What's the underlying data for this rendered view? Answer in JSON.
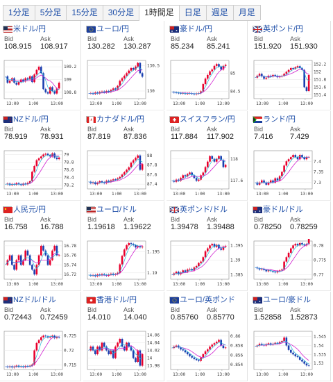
{
  "tabs": [
    {
      "label": "1分足",
      "active": false
    },
    {
      "label": "5分足",
      "active": false
    },
    {
      "label": "15分足",
      "active": false
    },
    {
      "label": "30分足",
      "active": false
    },
    {
      "label": "1時間足",
      "active": true
    },
    {
      "label": "日足",
      "active": false
    },
    {
      "label": "週足",
      "active": false
    },
    {
      "label": "月足",
      "active": false
    }
  ],
  "labels": {
    "bid": "Bid",
    "ask": "Ask"
  },
  "colors": {
    "up": "#e8002d",
    "down": "#1a3fb0",
    "ma_pink": "#d020d0",
    "ma_cyan": "#1fb5d8",
    "link": "#1f4fa8"
  },
  "panels": [
    {
      "pair": "米ドル/円",
      "flag": "us",
      "bid": "108.915",
      "ask": "108.917",
      "chart_data": {
        "type": "candlestick",
        "x_ticks": [
          "13:00",
          "1:00",
          "13:00"
        ],
        "y_ticks": [
          "109.2",
          "109",
          "108.8"
        ],
        "ylim": [
          108.7,
          109.3
        ],
        "path": [
          109.05,
          108.95,
          108.98,
          109.02,
          108.95,
          108.92,
          108.96,
          109.0,
          108.97,
          109.02,
          109.0,
          109.05,
          108.96,
          109.08,
          109.15,
          109.2,
          109.1,
          108.85,
          108.8,
          108.78,
          108.88,
          108.82,
          108.78,
          108.86,
          108.95
        ]
      }
    },
    {
      "pair": "ユーロ/円",
      "flag": "eu",
      "bid": "130.282",
      "ask": "130.287",
      "chart_data": {
        "type": "candlestick",
        "x_ticks": [
          "13:00",
          "1:00",
          "13:00"
        ],
        "y_ticks": [
          "130.5",
          "130"
        ],
        "ylim": [
          129.85,
          130.6
        ],
        "path": [
          129.95,
          129.96,
          129.94,
          129.97,
          129.95,
          129.98,
          129.99,
          129.97,
          130.0,
          129.98,
          130.02,
          130.05,
          130.03,
          130.1,
          130.2,
          130.25,
          130.3,
          130.35,
          130.4,
          130.45,
          130.42,
          130.48,
          130.55,
          130.35,
          130.28
        ]
      }
    },
    {
      "pair": "豪ドル/円",
      "flag": "au",
      "bid": "85.234",
      "ask": "85.241",
      "chart_data": {
        "type": "candlestick",
        "x_ticks": [
          "13:00",
          "1:00",
          "13:00"
        ],
        "y_ticks": [
          "85",
          "84.5"
        ],
        "ylim": [
          84.3,
          85.35
        ],
        "path": [
          84.48,
          84.47,
          84.46,
          84.45,
          84.44,
          84.45,
          84.43,
          84.44,
          84.45,
          84.43,
          84.42,
          84.44,
          84.45,
          84.5,
          84.7,
          84.85,
          84.95,
          85.05,
          85.1,
          85.2,
          85.25,
          85.18,
          85.1,
          85.2,
          85.23
        ]
      }
    },
    {
      "pair": "英ポンド/円",
      "flag": "gb",
      "bid": "151.920",
      "ask": "151.930",
      "chart_data": {
        "type": "candlestick",
        "x_ticks": [
          "13:00",
          "1:00",
          "13:00"
        ],
        "y_ticks": [
          "152.2",
          "152",
          "151.8",
          "151.6",
          "151.4"
        ],
        "ylim": [
          151.3,
          152.3
        ],
        "path": [
          151.85,
          151.9,
          151.95,
          151.88,
          151.82,
          151.85,
          151.9,
          151.88,
          151.92,
          151.9,
          151.86,
          151.88,
          151.9,
          151.95,
          152.0,
          152.05,
          152.1,
          152.08,
          152.12,
          152.15,
          152.1,
          152.05,
          151.6,
          151.5,
          151.92
        ]
      }
    },
    {
      "pair": "NZドル/円",
      "flag": "nz",
      "bid": "78.919",
      "ask": "78.931",
      "chart_data": {
        "type": "candlestick",
        "x_ticks": [
          "13:00",
          "1:00",
          "13:00"
        ],
        "y_ticks": [
          "79",
          "78.8",
          "78.6",
          "78.4",
          "78.2"
        ],
        "ylim": [
          78.1,
          79.1
        ],
        "path": [
          78.22,
          78.24,
          78.2,
          78.23,
          78.21,
          78.25,
          78.22,
          78.2,
          78.24,
          78.22,
          78.26,
          78.3,
          78.55,
          78.7,
          78.85,
          78.9,
          78.95,
          79.0,
          79.02,
          78.98,
          78.95,
          79.03,
          78.92,
          78.88,
          78.92
        ]
      }
    },
    {
      "pair": "カナダドル/円",
      "flag": "ca",
      "bid": "87.819",
      "ask": "87.836",
      "chart_data": {
        "type": "candlestick",
        "x_ticks": [
          "13:00",
          "1:00",
          "13:00"
        ],
        "y_ticks": [
          "88",
          "87.8",
          "87.6",
          "87.4"
        ],
        "ylim": [
          87.3,
          88.1
        ],
        "path": [
          87.45,
          87.42,
          87.44,
          87.4,
          87.43,
          87.46,
          87.44,
          87.42,
          87.47,
          87.45,
          87.48,
          87.5,
          87.49,
          87.52,
          87.55,
          87.6,
          87.65,
          87.7,
          87.75,
          87.85,
          87.9,
          87.95,
          88.0,
          87.7,
          87.82
        ]
      }
    },
    {
      "pair": "スイスフラン/円",
      "flag": "ch",
      "bid": "117.884",
      "ask": "117.902",
      "chart_data": {
        "type": "candlestick",
        "x_ticks": [
          "13:00",
          "1:00",
          "13:00"
        ],
        "y_ticks": [
          "118",
          "117.6"
        ],
        "ylim": [
          117.45,
          118.15
        ],
        "path": [
          117.6,
          117.58,
          117.62,
          117.6,
          117.65,
          117.7,
          117.68,
          117.72,
          117.75,
          117.7,
          117.65,
          117.6,
          117.62,
          117.7,
          117.75,
          117.85,
          117.95,
          118.05,
          118.0,
          117.95,
          118.0,
          118.05,
          117.98,
          117.85,
          117.89
        ]
      }
    },
    {
      "pair": "ランド/円",
      "flag": "za",
      "bid": "7.416",
      "ask": "7.429",
      "chart_data": {
        "type": "candlestick",
        "x_ticks": [
          "13:00",
          "1:00",
          "13:00"
        ],
        "y_ticks": [
          "7.4",
          "7.35",
          "7.3"
        ],
        "ylim": [
          7.27,
          7.45
        ],
        "path": [
          7.3,
          7.29,
          7.3,
          7.31,
          7.3,
          7.29,
          7.3,
          7.31,
          7.3,
          7.32,
          7.31,
          7.33,
          7.35,
          7.38,
          7.4,
          7.41,
          7.42,
          7.43,
          7.42,
          7.41,
          7.43,
          7.42,
          7.41,
          7.42,
          7.42
        ]
      }
    },
    {
      "pair": "人民元/円",
      "flag": "cn",
      "bid": "16.758",
      "ask": "16.788",
      "chart_data": {
        "type": "candlestick",
        "x_ticks": [
          "13:00",
          "1:00",
          "13:00"
        ],
        "y_ticks": [
          "16.78",
          "16.76",
          "16.74",
          "16.72"
        ],
        "ylim": [
          16.71,
          16.79
        ],
        "path": [
          16.74,
          16.75,
          16.76,
          16.74,
          16.73,
          16.75,
          16.76,
          16.74,
          16.75,
          16.77,
          16.76,
          16.74,
          16.73,
          16.72,
          16.74,
          16.76,
          16.78,
          16.77,
          16.76,
          16.74,
          16.75,
          16.77,
          16.78,
          16.76,
          16.76
        ]
      }
    },
    {
      "pair": "ユーロ/ドル",
      "flag": "us",
      "bid": "1.19618",
      "ask": "1.19622",
      "chart_data": {
        "type": "candlestick",
        "x_ticks": [
          "13:00",
          "1:00",
          "13:00"
        ],
        "y_ticks": [
          "1.195",
          "1.19"
        ],
        "ylim": [
          1.1885,
          1.1975
        ],
        "path": [
          1.1895,
          1.1893,
          1.1895,
          1.1892,
          1.1896,
          1.1894,
          1.1897,
          1.1895,
          1.1893,
          1.1896,
          1.1898,
          1.1895,
          1.1897,
          1.19,
          1.192,
          1.194,
          1.1955,
          1.1965,
          1.197,
          1.1968,
          1.1965,
          1.196,
          1.1963,
          1.196,
          1.1962
        ]
      }
    },
    {
      "pair": "英ポンド/ドル",
      "flag": "gb",
      "bid": "1.39478",
      "ask": "1.39488",
      "chart_data": {
        "type": "candlestick",
        "x_ticks": [
          "13:00",
          "1:00",
          "13:00"
        ],
        "y_ticks": [
          "1.395",
          "1.39",
          "1.385"
        ],
        "ylim": [
          1.3835,
          1.3965
        ],
        "path": [
          1.385,
          1.3855,
          1.386,
          1.3852,
          1.3858,
          1.3865,
          1.386,
          1.3868,
          1.387,
          1.3865,
          1.3875,
          1.388,
          1.389,
          1.3895,
          1.391,
          1.393,
          1.394,
          1.395,
          1.3955,
          1.3945,
          1.3952,
          1.394,
          1.3935,
          1.3945,
          1.3948
        ]
      }
    },
    {
      "pair": "豪ドル/ドル",
      "flag": "au",
      "bid": "0.78250",
      "ask": "0.78259",
      "chart_data": {
        "type": "candlestick",
        "x_ticks": [
          "13:00",
          "1:00",
          "13:00"
        ],
        "y_ticks": [
          "0.78",
          "0.775",
          "0.77"
        ],
        "ylim": [
          0.7685,
          0.7815
        ],
        "path": [
          0.7725,
          0.7722,
          0.7718,
          0.772,
          0.7716,
          0.7712,
          0.7715,
          0.7713,
          0.771,
          0.7708,
          0.7712,
          0.7715,
          0.7718,
          0.7745,
          0.776,
          0.7775,
          0.779,
          0.78,
          0.7805,
          0.78,
          0.7808,
          0.7803,
          0.78,
          0.7805,
          0.7825
        ]
      }
    },
    {
      "pair": "NZドル/ドル",
      "flag": "nz",
      "bid": "0.72443",
      "ask": "0.72459",
      "chart_data": {
        "type": "candlestick",
        "x_ticks": [
          "13:00",
          "1:00",
          "13:00"
        ],
        "y_ticks": [
          "0.725",
          "0.72",
          "0.715"
        ],
        "ylim": [
          0.7135,
          0.7265
        ],
        "path": [
          0.7145,
          0.7143,
          0.7146,
          0.7142,
          0.7145,
          0.7148,
          0.7144,
          0.7146,
          0.7143,
          0.7147,
          0.7145,
          0.7148,
          0.7152,
          0.72,
          0.7225,
          0.7235,
          0.7245,
          0.725,
          0.7248,
          0.7244,
          0.7246,
          0.725,
          0.7242,
          0.7246,
          0.7244
        ]
      }
    },
    {
      "pair": "香港ドル/円",
      "flag": "hk",
      "bid": "14.010",
      "ask": "14.040",
      "chart_data": {
        "type": "candlestick",
        "x_ticks": [
          "13:00",
          "1:00",
          "13:00"
        ],
        "y_ticks": [
          "14.06",
          "14.04",
          "14.02",
          "14",
          "13.98"
        ],
        "ylim": [
          13.97,
          14.07
        ],
        "path": [
          14.02,
          14.03,
          14.02,
          14.01,
          14.03,
          14.02,
          14.04,
          14.03,
          14.02,
          14.01,
          14.02,
          14.0,
          14.03,
          14.04,
          14.05,
          14.03,
          14.02,
          14.04,
          14.03,
          14.02,
          14.0,
          13.99,
          14.02,
          13.98,
          14.01
        ]
      }
    },
    {
      "pair": "ユーロ/英ポンド",
      "flag": "eu",
      "bid": "0.85760",
      "ask": "0.85770",
      "chart_data": {
        "type": "candlestick",
        "x_ticks": [
          "13:00",
          "1:00",
          "13:00"
        ],
        "y_ticks": [
          "0.86",
          "0.858",
          "0.856",
          "0.854"
        ],
        "ylim": [
          0.853,
          0.861
        ],
        "path": [
          0.8575,
          0.8578,
          0.858,
          0.8576,
          0.8572,
          0.857,
          0.8566,
          0.8562,
          0.8558,
          0.8555,
          0.8552,
          0.855,
          0.8548,
          0.8555,
          0.8562,
          0.8568,
          0.8572,
          0.8578,
          0.8582,
          0.8585,
          0.8588,
          0.8592,
          0.858,
          0.8575,
          0.8576
        ]
      }
    },
    {
      "pair": "ユーロ/豪ドル",
      "flag": "au",
      "bid": "1.52858",
      "ask": "1.52873",
      "chart_data": {
        "type": "candlestick",
        "x_ticks": [
          "13:00",
          "1:00",
          "13:00"
        ],
        "y_ticks": [
          "1.545",
          "1.54",
          "1.535",
          "1.53"
        ],
        "ylim": [
          1.5265,
          1.548
        ],
        "path": [
          1.5395,
          1.54,
          1.541,
          1.5405,
          1.54,
          1.5408,
          1.5412,
          1.5405,
          1.541,
          1.5415,
          1.5412,
          1.542,
          1.5425,
          1.5445,
          1.54,
          1.5375,
          1.536,
          1.535,
          1.534,
          1.5335,
          1.532,
          1.531,
          1.5298,
          1.5288,
          1.5286
        ]
      }
    }
  ]
}
